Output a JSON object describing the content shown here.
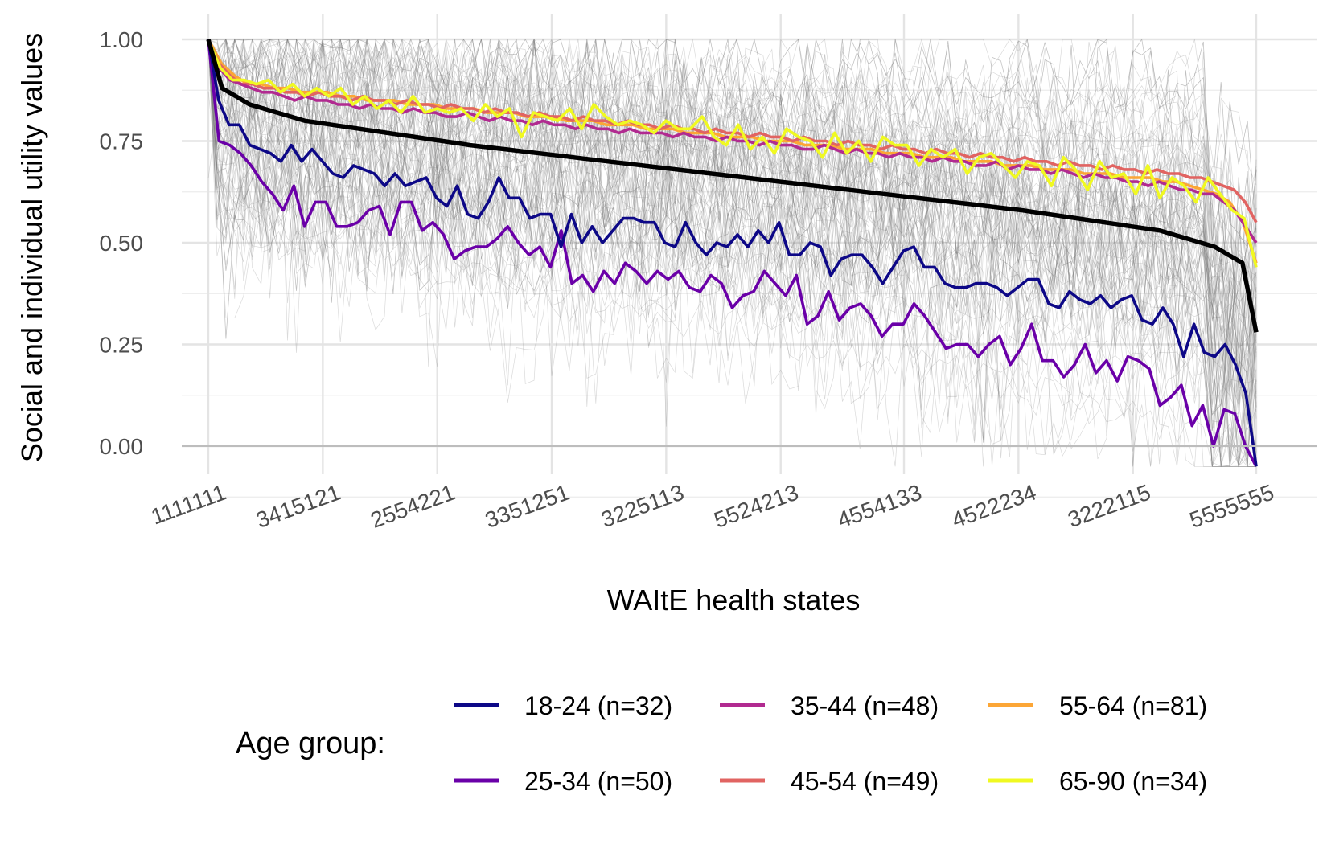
{
  "chart_data": {
    "type": "line",
    "title": "",
    "xlabel": "WAItE health states",
    "ylabel": "Social and individual utility values",
    "ylim": [
      -0.05,
      1.0
    ],
    "yticks": [
      "0.00",
      "0.25",
      "0.50",
      "0.75",
      "1.00"
    ],
    "ytick_values": [
      0,
      0.25,
      0.5,
      0.75,
      1.0
    ],
    "grid": true,
    "n_states": 120,
    "xticks": [
      {
        "label": "1111111",
        "index": 0
      },
      {
        "label": "3415121",
        "index": 13
      },
      {
        "label": "2554221",
        "index": 26
      },
      {
        "label": "3351251",
        "index": 39
      },
      {
        "label": "3225113",
        "index": 52
      },
      {
        "label": "5524213",
        "index": 65
      },
      {
        "label": "4554133",
        "index": 79
      },
      {
        "label": "4522234",
        "index": 92
      },
      {
        "label": "3222115",
        "index": 105
      },
      {
        "label": "5555555",
        "index": 119
      }
    ],
    "background_series": {
      "description_count": 90,
      "color": "#7a7a7a"
    },
    "overall_series": {
      "color": "#000000"
    },
    "legend": {
      "title": "Age group:",
      "position": "bottom",
      "entries": [
        {
          "label": "18-24 (n=32)",
          "color": "#0d0887"
        },
        {
          "label": "25-34 (n=50)",
          "color": "#6a00a8"
        },
        {
          "label": "35-44 (n=48)",
          "color": "#b12a90"
        },
        {
          "label": "45-54 (n=49)",
          "color": "#e16462"
        },
        {
          "label": "55-64 (n=81)",
          "color": "#fca636"
        },
        {
          "label": "65-90 (n=34)",
          "color": "#f0f921"
        }
      ]
    },
    "series": [
      {
        "name": "18-24 (n=32)",
        "color": "#0d0887",
        "values": [
          1.0,
          0.85,
          0.79,
          0.79,
          0.74,
          0.73,
          0.72,
          0.7,
          0.74,
          0.7,
          0.73,
          0.7,
          0.67,
          0.66,
          0.69,
          0.68,
          0.67,
          0.64,
          0.67,
          0.64,
          0.65,
          0.66,
          0.61,
          0.59,
          0.64,
          0.57,
          0.56,
          0.6,
          0.66,
          0.61,
          0.61,
          0.56,
          0.57,
          0.57,
          0.49,
          0.57,
          0.5,
          0.54,
          0.5,
          0.53,
          0.56,
          0.56,
          0.55,
          0.55,
          0.5,
          0.49,
          0.55,
          0.5,
          0.47,
          0.5,
          0.49,
          0.52,
          0.49,
          0.53,
          0.5,
          0.55,
          0.47,
          0.47,
          0.5,
          0.49,
          0.42,
          0.46,
          0.47,
          0.47,
          0.44,
          0.4,
          0.44,
          0.48,
          0.49,
          0.44,
          0.44,
          0.4,
          0.39,
          0.39,
          0.4,
          0.4,
          0.39,
          0.37,
          0.39,
          0.41,
          0.41,
          0.35,
          0.34,
          0.38,
          0.36,
          0.35,
          0.37,
          0.34,
          0.36,
          0.37,
          0.31,
          0.3,
          0.34,
          0.3,
          0.22,
          0.3,
          0.23,
          0.22,
          0.25,
          0.2,
          0.13,
          -0.05
        ]
      },
      {
        "name": "25-34 (n=50)",
        "color": "#6a00a8",
        "values": [
          1.0,
          0.75,
          0.74,
          0.72,
          0.69,
          0.65,
          0.62,
          0.58,
          0.64,
          0.54,
          0.6,
          0.6,
          0.54,
          0.54,
          0.55,
          0.58,
          0.59,
          0.52,
          0.6,
          0.6,
          0.53,
          0.55,
          0.52,
          0.46,
          0.48,
          0.49,
          0.49,
          0.51,
          0.54,
          0.5,
          0.47,
          0.49,
          0.44,
          0.53,
          0.4,
          0.42,
          0.38,
          0.43,
          0.4,
          0.45,
          0.43,
          0.4,
          0.43,
          0.41,
          0.43,
          0.39,
          0.38,
          0.42,
          0.4,
          0.34,
          0.37,
          0.38,
          0.43,
          0.4,
          0.37,
          0.42,
          0.3,
          0.32,
          0.38,
          0.31,
          0.34,
          0.35,
          0.32,
          0.27,
          0.3,
          0.3,
          0.35,
          0.32,
          0.28,
          0.24,
          0.25,
          0.25,
          0.22,
          0.25,
          0.27,
          0.2,
          0.24,
          0.3,
          0.21,
          0.21,
          0.17,
          0.2,
          0.25,
          0.18,
          0.21,
          0.16,
          0.22,
          0.21,
          0.19,
          0.1,
          0.12,
          0.15,
          0.05,
          0.1,
          0.0,
          0.09,
          0.08,
          0.0,
          -0.05
        ]
      },
      {
        "name": "35-44 (n=48)",
        "color": "#b12a90",
        "values": [
          1.0,
          0.93,
          0.9,
          0.89,
          0.88,
          0.87,
          0.87,
          0.86,
          0.85,
          0.86,
          0.85,
          0.85,
          0.84,
          0.84,
          0.83,
          0.84,
          0.83,
          0.83,
          0.82,
          0.83,
          0.82,
          0.82,
          0.81,
          0.81,
          0.82,
          0.81,
          0.8,
          0.81,
          0.8,
          0.8,
          0.79,
          0.8,
          0.79,
          0.79,
          0.78,
          0.79,
          0.78,
          0.78,
          0.77,
          0.78,
          0.77,
          0.77,
          0.77,
          0.76,
          0.77,
          0.76,
          0.76,
          0.75,
          0.76,
          0.75,
          0.75,
          0.74,
          0.75,
          0.74,
          0.74,
          0.73,
          0.73,
          0.74,
          0.73,
          0.72,
          0.73,
          0.72,
          0.72,
          0.71,
          0.72,
          0.71,
          0.71,
          0.7,
          0.71,
          0.7,
          0.7,
          0.69,
          0.69,
          0.7,
          0.68,
          0.69,
          0.68,
          0.68,
          0.67,
          0.68,
          0.67,
          0.66,
          0.67,
          0.66,
          0.66,
          0.65,
          0.65,
          0.64,
          0.65,
          0.64,
          0.63,
          0.63,
          0.62,
          0.62,
          0.6,
          0.58,
          0.54,
          0.5
        ]
      },
      {
        "name": "45-54 (n=49)",
        "color": "#e16462",
        "values": [
          1.0,
          0.94,
          0.91,
          0.89,
          0.89,
          0.88,
          0.88,
          0.87,
          0.87,
          0.86,
          0.87,
          0.86,
          0.86,
          0.85,
          0.86,
          0.85,
          0.85,
          0.84,
          0.85,
          0.84,
          0.84,
          0.83,
          0.84,
          0.83,
          0.83,
          0.82,
          0.83,
          0.82,
          0.82,
          0.81,
          0.82,
          0.81,
          0.81,
          0.8,
          0.81,
          0.8,
          0.8,
          0.79,
          0.8,
          0.79,
          0.79,
          0.78,
          0.79,
          0.78,
          0.78,
          0.77,
          0.78,
          0.77,
          0.77,
          0.76,
          0.77,
          0.76,
          0.76,
          0.75,
          0.76,
          0.75,
          0.75,
          0.74,
          0.75,
          0.74,
          0.74,
          0.73,
          0.74,
          0.73,
          0.73,
          0.72,
          0.73,
          0.72,
          0.72,
          0.71,
          0.72,
          0.71,
          0.71,
          0.7,
          0.71,
          0.7,
          0.7,
          0.69,
          0.7,
          0.69,
          0.69,
          0.68,
          0.69,
          0.68,
          0.68,
          0.67,
          0.68,
          0.67,
          0.67,
          0.66,
          0.66,
          0.65,
          0.64,
          0.63,
          0.6,
          0.55
        ]
      },
      {
        "name": "55-64 (n=81)",
        "color": "#fca636",
        "values": [
          1.0,
          0.94,
          0.91,
          0.89,
          0.89,
          0.88,
          0.88,
          0.87,
          0.87,
          0.87,
          0.86,
          0.86,
          0.85,
          0.85,
          0.85,
          0.84,
          0.84,
          0.84,
          0.83,
          0.83,
          0.83,
          0.82,
          0.82,
          0.82,
          0.81,
          0.81,
          0.81,
          0.8,
          0.8,
          0.8,
          0.79,
          0.79,
          0.79,
          0.78,
          0.78,
          0.78,
          0.77,
          0.77,
          0.77,
          0.76,
          0.76,
          0.76,
          0.75,
          0.75,
          0.75,
          0.74,
          0.74,
          0.74,
          0.73,
          0.73,
          0.73,
          0.72,
          0.72,
          0.72,
          0.71,
          0.71,
          0.71,
          0.7,
          0.7,
          0.7,
          0.69,
          0.69,
          0.69,
          0.68,
          0.68,
          0.68,
          0.67,
          0.67,
          0.67,
          0.66,
          0.66,
          0.66,
          0.65,
          0.65,
          0.64,
          0.63,
          0.62,
          0.6,
          0.55,
          0.45
        ]
      },
      {
        "name": "65-90 (n=34)",
        "color": "#f0f921",
        "values": [
          1.0,
          0.93,
          0.9,
          0.9,
          0.89,
          0.9,
          0.87,
          0.89,
          0.86,
          0.88,
          0.86,
          0.88,
          0.84,
          0.86,
          0.83,
          0.85,
          0.82,
          0.86,
          0.82,
          0.83,
          0.82,
          0.83,
          0.8,
          0.84,
          0.81,
          0.83,
          0.76,
          0.82,
          0.81,
          0.8,
          0.83,
          0.78,
          0.84,
          0.81,
          0.79,
          0.8,
          0.79,
          0.77,
          0.8,
          0.78,
          0.78,
          0.81,
          0.76,
          0.74,
          0.79,
          0.73,
          0.76,
          0.72,
          0.78,
          0.76,
          0.75,
          0.71,
          0.77,
          0.72,
          0.75,
          0.7,
          0.76,
          0.74,
          0.74,
          0.69,
          0.73,
          0.71,
          0.73,
          0.67,
          0.71,
          0.72,
          0.69,
          0.66,
          0.7,
          0.69,
          0.64,
          0.71,
          0.68,
          0.63,
          0.7,
          0.66,
          0.67,
          0.62,
          0.69,
          0.61,
          0.66,
          0.64,
          0.6,
          0.66,
          0.62,
          0.58,
          0.56,
          0.44
        ]
      },
      {
        "name": "",
        "color": "#000000",
        "values": [
          1.0,
          0.88,
          0.86,
          0.84,
          0.83,
          0.82,
          0.81,
          0.8,
          0.795,
          0.79,
          0.785,
          0.78,
          0.775,
          0.77,
          0.765,
          0.76,
          0.755,
          0.75,
          0.745,
          0.74,
          0.736,
          0.732,
          0.728,
          0.724,
          0.72,
          0.716,
          0.712,
          0.708,
          0.704,
          0.7,
          0.696,
          0.692,
          0.688,
          0.684,
          0.68,
          0.676,
          0.672,
          0.668,
          0.664,
          0.66,
          0.656,
          0.652,
          0.648,
          0.644,
          0.64,
          0.636,
          0.632,
          0.628,
          0.624,
          0.62,
          0.616,
          0.612,
          0.608,
          0.604,
          0.6,
          0.596,
          0.592,
          0.588,
          0.584,
          0.58,
          0.575,
          0.57,
          0.565,
          0.56,
          0.555,
          0.55,
          0.545,
          0.54,
          0.535,
          0.53,
          0.52,
          0.51,
          0.5,
          0.49,
          0.47,
          0.45,
          0.28
        ]
      }
    ]
  }
}
